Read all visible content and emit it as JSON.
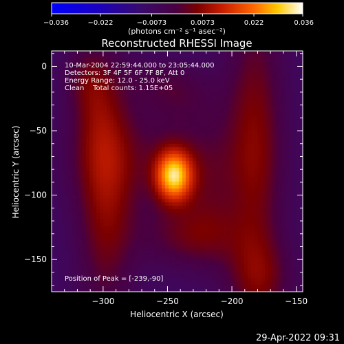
{
  "chart_data": {
    "type": "heatmap",
    "title": "Reconstructed RHESSI Image",
    "xlabel": "Heliocentric X (arcsec)",
    "ylabel": "Heliocentric Y (arcsec)",
    "xlim": [
      -340,
      -145
    ],
    "ylim": [
      -175,
      12
    ],
    "x_ticks": [
      -300,
      -250,
      -200,
      -150
    ],
    "x_tick_labels": [
      "−300",
      "−250",
      "−200",
      "−150"
    ],
    "y_ticks": [
      0,
      -50,
      -100,
      -150
    ],
    "y_tick_labels": [
      "0",
      "−50",
      "−100",
      "−150"
    ],
    "colorbar": {
      "range": [
        -0.036,
        0.036
      ],
      "ticks": [
        -0.036,
        -0.022,
        -0.0073,
        0.0073,
        0.022,
        0.036
      ],
      "tick_labels": [
        "−0.036",
        "−0.022",
        "−0.0073",
        "0.0073",
        "0.022",
        "0.036"
      ],
      "units_label": "(photons cm⁻² s⁻¹ asec⁻²)"
    },
    "info_lines": [
      "10-Mar-2004 22:59:44.000 to 23:05:44.000",
      "Detectors: 3F 4F 5F 6F 7F 8F, Att 0",
      "Energy Range: 12.0 - 25.0 keV",
      "Clean    Total counts: 1.15E+05"
    ],
    "peak_label": "Position of Peak = [-239,-90]",
    "peak": {
      "x": -239,
      "y": -90,
      "value": 0.036
    },
    "components": [
      {
        "x": -245,
        "y": -85,
        "sx": 10,
        "sy": 14,
        "amp": 0.034
      },
      {
        "x": -262,
        "y": -72,
        "sx": 45,
        "sy": 28,
        "amp": 0.007
      },
      {
        "x": -240,
        "y": -25,
        "sx": 22,
        "sy": 16,
        "amp": 0.005
      },
      {
        "x": -298,
        "y": -105,
        "sx": 16,
        "sy": 65,
        "amp": 0.013
      },
      {
        "x": -305,
        "y": -30,
        "sx": 14,
        "sy": 35,
        "amp": 0.006
      },
      {
        "x": -232,
        "y": -132,
        "sx": 28,
        "sy": 18,
        "amp": 0.01
      },
      {
        "x": -218,
        "y": -95,
        "sx": 14,
        "sy": 35,
        "amp": 0.005
      },
      {
        "x": -182,
        "y": -60,
        "sx": 16,
        "sy": 80,
        "amp": 0.013
      },
      {
        "x": -178,
        "y": -165,
        "sx": 18,
        "sy": 22,
        "amp": 0.009
      },
      {
        "x": -315,
        "y": -10,
        "sx": 12,
        "sy": 18,
        "amp": 0.005
      },
      {
        "x": -255,
        "y": -10,
        "sx": 22,
        "sy": 12,
        "amp": 0.004
      }
    ],
    "background": -0.0075,
    "colormap": [
      [
        0.0,
        "#0000ff"
      ],
      [
        0.18,
        "#1a00c0"
      ],
      [
        0.36,
        "#3a0a6a"
      ],
      [
        0.5,
        "#4a0040"
      ],
      [
        0.58,
        "#7a0000"
      ],
      [
        0.68,
        "#c81e00"
      ],
      [
        0.8,
        "#ff6400"
      ],
      [
        0.9,
        "#ffc800"
      ],
      [
        1.0,
        "#ffffff"
      ]
    ]
  },
  "footer": {
    "timestamp": "29-Apr-2022 09:31"
  }
}
